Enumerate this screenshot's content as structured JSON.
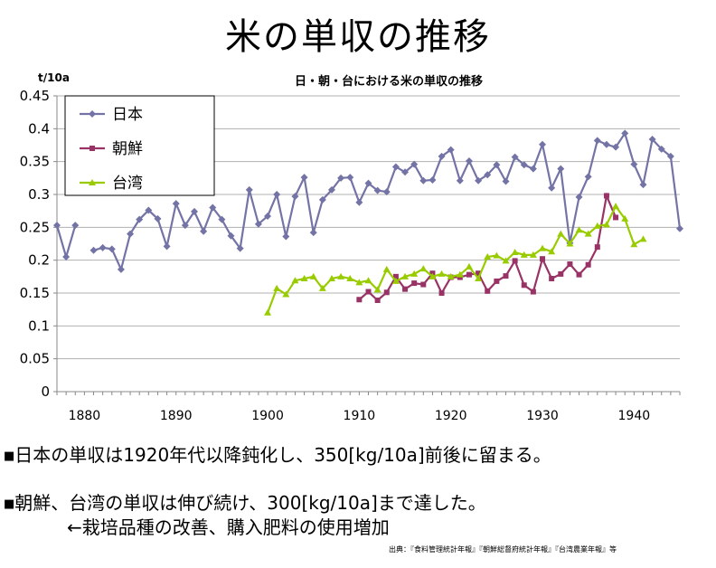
{
  "title": "米の単収の推移",
  "bullets": [
    {
      "marker": "■",
      "text": "日本の単収は1920年代以降鈍化し、350[kg/10a]前後に留まる。"
    },
    {
      "marker": "■",
      "text": "朝鮮、台湾の単収は伸び続け、300[kg/10a]まで達した。"
    }
  ],
  "bullet2_sub": "←栽培品種の改善、購入肥料の使用増加",
  "source": "出典：『食料管理統計年報』『朝鮮総督府統計年報』『台湾農業年報』等",
  "chart_data": {
    "type": "line",
    "title": "日・朝・台における米の単収の推移",
    "ylabel": "t/10a",
    "xlabel": "",
    "ylim": [
      0,
      0.45
    ],
    "xlim": [
      1877,
      1945
    ],
    "yticks": [
      "0",
      "0.05",
      "0.1",
      "0.15",
      "0.2",
      "0.25",
      "0.3",
      "0.35",
      "0.4",
      "0.45"
    ],
    "xticks": [
      "1880",
      "1890",
      "1900",
      "1910",
      "1920",
      "1930",
      "1940"
    ],
    "grid": true,
    "legend_position": "top-left",
    "series": [
      {
        "name": "日本",
        "color": "#7373a6",
        "marker": "diamond",
        "x": [
          1877,
          1878,
          1879,
          null,
          1881,
          1882,
          1883,
          1884,
          1885,
          1886,
          1887,
          1888,
          1889,
          1890,
          1891,
          1892,
          1893,
          1894,
          1895,
          1896,
          1897,
          1898,
          1899,
          1900,
          1901,
          1902,
          1903,
          1904,
          1905,
          1906,
          1907,
          1908,
          1909,
          1910,
          1911,
          1912,
          1913,
          1914,
          1915,
          1916,
          1917,
          1918,
          1919,
          1920,
          1921,
          1922,
          1923,
          1924,
          1925,
          1926,
          1927,
          1928,
          1929,
          1930,
          1931,
          1932,
          1933,
          1934,
          1935,
          1936,
          1937,
          1938,
          1939,
          1940,
          1941,
          1942,
          1943,
          1944,
          1945
        ],
        "values": [
          0.253,
          0.205,
          0.253,
          null,
          0.215,
          0.219,
          0.217,
          0.186,
          0.24,
          0.262,
          0.276,
          0.263,
          0.221,
          0.286,
          0.253,
          0.274,
          0.244,
          0.28,
          0.262,
          0.237,
          0.218,
          0.307,
          0.255,
          0.267,
          0.3,
          0.236,
          0.297,
          0.326,
          0.242,
          0.292,
          0.307,
          0.325,
          0.326,
          0.288,
          0.317,
          0.306,
          0.304,
          0.342,
          0.334,
          0.346,
          0.321,
          0.322,
          0.358,
          0.368,
          0.321,
          0.351,
          0.321,
          0.33,
          0.345,
          0.32,
          0.357,
          0.345,
          0.339,
          0.376,
          0.31,
          0.339,
          0.226,
          0.296,
          0.327,
          0.382,
          0.376,
          0.372,
          0.393,
          0.346,
          0.315,
          0.384,
          0.369,
          0.358,
          0.248
        ]
      },
      {
        "name": "朝鮮",
        "color": "#993366",
        "marker": "square",
        "x": [
          1910,
          1911,
          1912,
          1913,
          1914,
          1915,
          1916,
          1917,
          1918,
          1919,
          1920,
          1921,
          1922,
          1923,
          1924,
          1925,
          1926,
          1927,
          1928,
          1929,
          1930,
          1931,
          1932,
          1933,
          1934,
          1935,
          1936,
          1937,
          1938
        ],
        "values": [
          0.14,
          0.152,
          0.139,
          0.151,
          0.175,
          0.156,
          0.165,
          0.163,
          0.18,
          0.15,
          0.174,
          0.174,
          0.178,
          0.18,
          0.153,
          0.168,
          0.176,
          0.199,
          0.162,
          0.152,
          0.202,
          0.172,
          0.179,
          0.194,
          0.178,
          0.193,
          0.22,
          0.298,
          0.265
        ]
      },
      {
        "name": "台湾",
        "color": "#99cc00",
        "marker": "triangle",
        "x": [
          1900,
          1901,
          1902,
          1903,
          1904,
          1905,
          1906,
          1907,
          1908,
          1909,
          1910,
          1911,
          1912,
          1913,
          1914,
          1915,
          1916,
          1917,
          1918,
          1919,
          1920,
          1921,
          1922,
          1923,
          1924,
          1925,
          1926,
          1927,
          1928,
          1929,
          1930,
          1931,
          1932,
          1933,
          1934,
          1935,
          1936,
          1937,
          1938,
          1939,
          1940,
          1941
        ],
        "values": [
          0.12,
          0.157,
          0.148,
          0.169,
          0.172,
          0.175,
          0.157,
          0.172,
          0.175,
          0.172,
          0.166,
          0.169,
          0.155,
          0.186,
          0.168,
          0.175,
          0.179,
          0.187,
          0.175,
          0.179,
          0.175,
          0.178,
          0.19,
          0.172,
          0.205,
          0.207,
          0.199,
          0.212,
          0.208,
          0.208,
          0.218,
          0.213,
          0.24,
          0.225,
          0.246,
          0.24,
          0.252,
          0.254,
          0.282,
          0.263,
          0.224,
          0.232
        ]
      }
    ]
  }
}
